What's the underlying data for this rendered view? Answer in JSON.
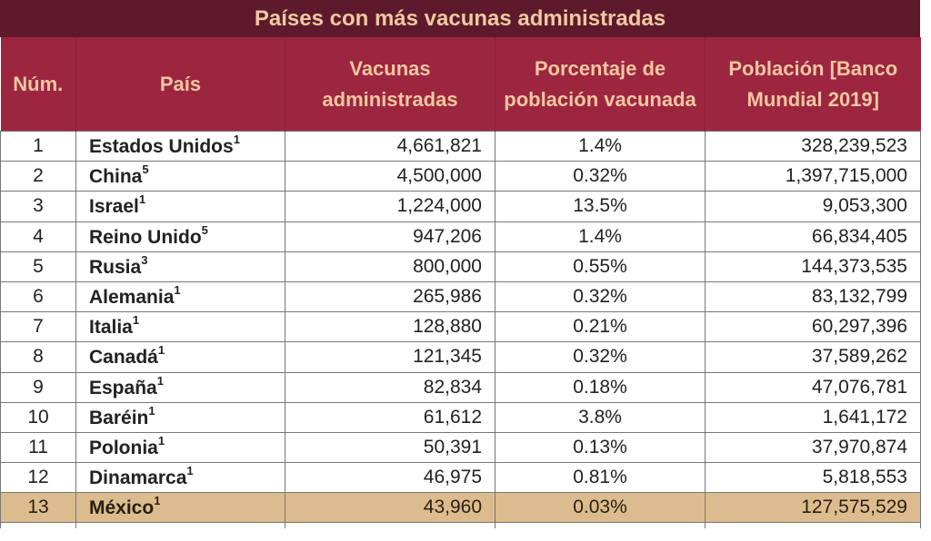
{
  "table": {
    "title": "Países con más vacunas administradas",
    "headers": [
      "Núm.",
      "País",
      "Vacunas administradas",
      "Porcentaje de población vacunada",
      "Población [Banco Mundial 2019]"
    ],
    "rows": [
      {
        "num": "1",
        "country": "Estados Unidos",
        "note": "1",
        "vaccines": "4,661,821",
        "percent": "1.4%",
        "population": "328,239,523"
      },
      {
        "num": "2",
        "country": "China",
        "note": "5",
        "vaccines": "4,500,000",
        "percent": "0.32%",
        "population": "1,397,715,000"
      },
      {
        "num": "3",
        "country": "Israel",
        "note": "1",
        "vaccines": "1,224,000",
        "percent": "13.5%",
        "population": "9,053,300"
      },
      {
        "num": "4",
        "country": "Reino Unido",
        "note": "5",
        "vaccines": "947,206",
        "percent": "1.4%",
        "population": "66,834,405"
      },
      {
        "num": "5",
        "country": "Rusia",
        "note": "3",
        "vaccines": "800,000",
        "percent": "0.55%",
        "population": "144,373,535"
      },
      {
        "num": "6",
        "country": "Alemania",
        "note": "1",
        "vaccines": "265,986",
        "percent": "0.32%",
        "population": "83,132,799"
      },
      {
        "num": "7",
        "country": "Italia",
        "note": "1",
        "vaccines": "128,880",
        "percent": "0.21%",
        "population": "60,297,396"
      },
      {
        "num": "8",
        "country": "Canadá",
        "note": "1",
        "vaccines": "121,345",
        "percent": "0.32%",
        "population": "37,589,262"
      },
      {
        "num": "9",
        "country": "España",
        "note": "1",
        "vaccines": "82,834",
        "percent": "0.18%",
        "population": "47,076,781"
      },
      {
        "num": "10",
        "country": "Baréin",
        "note": "1",
        "vaccines": "61,612",
        "percent": "3.8%",
        "population": "1,641,172"
      },
      {
        "num": "11",
        "country": "Polonia",
        "note": "1",
        "vaccines": "50,391",
        "percent": "0.13%",
        "population": "37,970,874"
      },
      {
        "num": "12",
        "country": "Dinamarca",
        "note": "1",
        "vaccines": "46,975",
        "percent": "0.81%",
        "population": "5,818,553"
      },
      {
        "num": "13",
        "country": "México",
        "note": "1",
        "vaccines": "43,960",
        "percent": "0.03%",
        "population": "127,575,529",
        "highlight": true
      }
    ]
  },
  "colors": {
    "title_bg": "#5e1a2c",
    "header_bg": "#9c2640",
    "header_text": "#f2c7a0",
    "highlight_row": "#dcbc8e"
  }
}
